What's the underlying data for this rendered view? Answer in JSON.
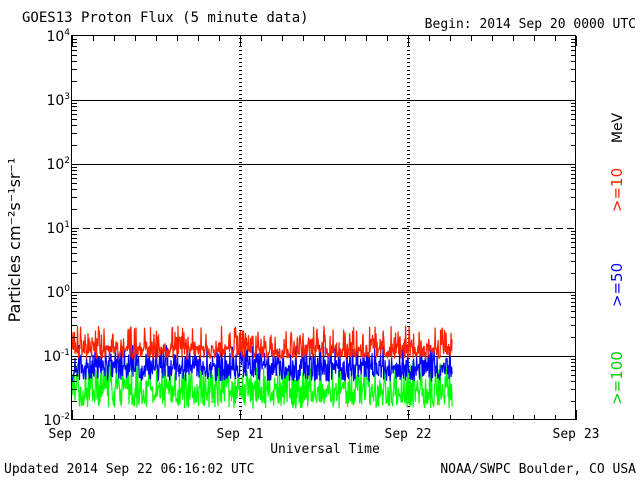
{
  "chart_data": {
    "type": "line",
    "title": "GOES13 Proton Flux (5 minute data)",
    "subtitle": "Begin: 2014 Sep 20 0000 UTC",
    "xlabel": "Universal Time",
    "ylabel": "Particles cm⁻²s⁻¹sr⁻¹",
    "y_scale": "log",
    "ylim": [
      0.01,
      10000
    ],
    "xlim_hours": [
      0,
      72
    ],
    "x_tick_labels": [
      "Sep 20",
      "Sep 21",
      "Sep 22",
      "Sep 23"
    ],
    "y_tick_labels": [
      {
        "base": "10",
        "exp": "-2"
      },
      {
        "base": "10",
        "exp": "-1"
      },
      {
        "base": "10",
        "exp": "0"
      },
      {
        "base": "10",
        "exp": "1"
      },
      {
        "base": "10",
        "exp": "2"
      },
      {
        "base": "10",
        "exp": "3"
      },
      {
        "base": "10",
        "exp": "4"
      }
    ],
    "reference_lines": [
      {
        "value": 0.1,
        "style": "solid"
      },
      {
        "value": 1,
        "style": "solid"
      },
      {
        "value": 10,
        "style": "dashed"
      },
      {
        "value": 100,
        "style": "solid"
      },
      {
        "value": 1000,
        "style": "solid"
      }
    ],
    "day_markers": [
      "Sep 21",
      "Sep 22"
    ],
    "unit_label": "MeV",
    "series": [
      {
        "name": ">=10",
        "color": "#ff2000",
        "data_end_hours": 54.3,
        "range": [
          0.09,
          0.3
        ],
        "typical": 0.13
      },
      {
        "name": ">=50",
        "color": "#0000ff",
        "data_end_hours": 54.3,
        "range": [
          0.04,
          0.15
        ],
        "typical": 0.07
      },
      {
        "name": ">=100",
        "color": "#00ff00",
        "data_end_hours": 54.3,
        "range": [
          0.015,
          0.08
        ],
        "typical": 0.03
      }
    ]
  },
  "footer": {
    "updated": "Updated 2014 Sep 22 06:16:02 UTC",
    "credit": "NOAA/SWPC Boulder, CO USA"
  }
}
